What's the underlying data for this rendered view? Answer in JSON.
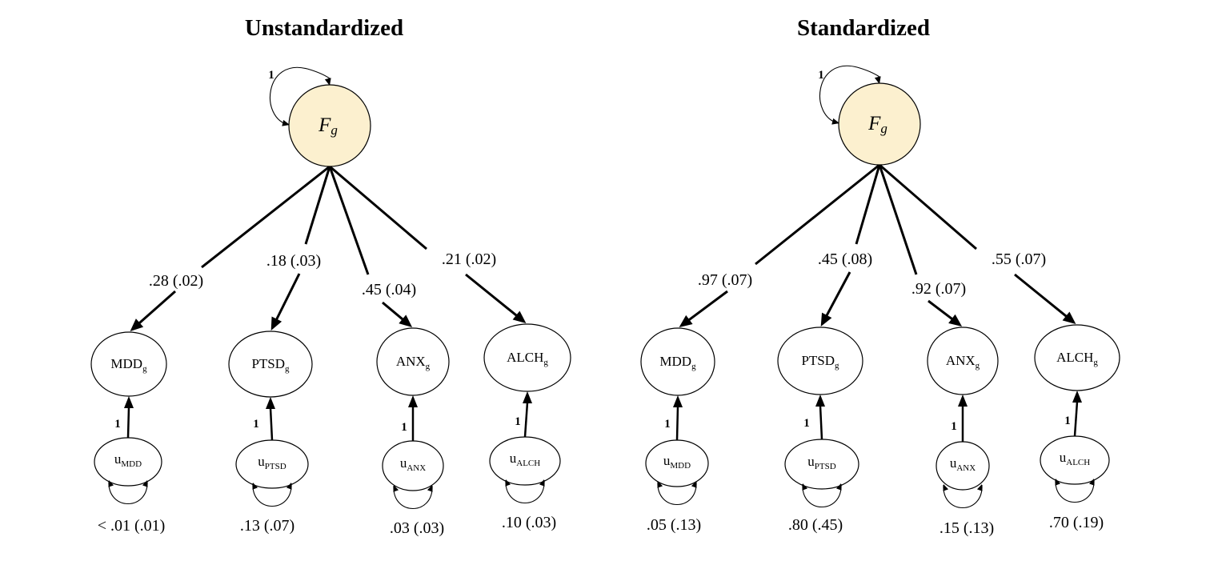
{
  "panels": [
    {
      "title": "Unstandardized",
      "factor": {
        "main": "F",
        "sub": "g",
        "variance": "1"
      },
      "indicators": [
        {
          "name": "MDD",
          "sub": "g",
          "loading": ".28 (.02)",
          "resid_main": "u",
          "resid_sub": "MDD",
          "resid_path": "1",
          "resid_var": "< .01 (.01)"
        },
        {
          "name": "PTSD",
          "sub": "g",
          "loading": ".18 (.03)",
          "resid_main": "u",
          "resid_sub": "PTSD",
          "resid_path": "1",
          "resid_var": ".13 (.07)"
        },
        {
          "name": "ANX",
          "sub": "g",
          "loading": ".45 (.04)",
          "resid_main": "u",
          "resid_sub": "ANX",
          "resid_path": "1",
          "resid_var": ".03 (.03)"
        },
        {
          "name": "ALCH",
          "sub": "g",
          "loading": ".21 (.02)",
          "resid_main": "u",
          "resid_sub": "ALCH",
          "resid_path": "1",
          "resid_var": ".10 (.03)"
        }
      ]
    },
    {
      "title": "Standardized",
      "factor": {
        "main": "F",
        "sub": "g",
        "variance": "1"
      },
      "indicators": [
        {
          "name": "MDD",
          "sub": "g",
          "loading": ".97 (.07)",
          "resid_main": "u",
          "resid_sub": "MDD",
          "resid_path": "1",
          "resid_var": ".05 (.13)"
        },
        {
          "name": "PTSD",
          "sub": "g",
          "loading": ".45 (.08)",
          "resid_main": "u",
          "resid_sub": "PTSD",
          "resid_path": "1",
          "resid_var": ".80 (.45)"
        },
        {
          "name": "ANX",
          "sub": "g",
          "loading": ".92 (.07)",
          "resid_main": "u",
          "resid_sub": "ANX",
          "resid_path": "1",
          "resid_var": ".15 (.13)"
        },
        {
          "name": "ALCH",
          "sub": "g",
          "loading": ".55 (.07)",
          "resid_main": "u",
          "resid_sub": "ALCH",
          "resid_path": "1",
          "resid_var": ".70 (.19)"
        }
      ]
    }
  ],
  "colors": {
    "factor_fill": "#fcf0cf",
    "stroke": "#000000",
    "background": "#ffffff"
  }
}
